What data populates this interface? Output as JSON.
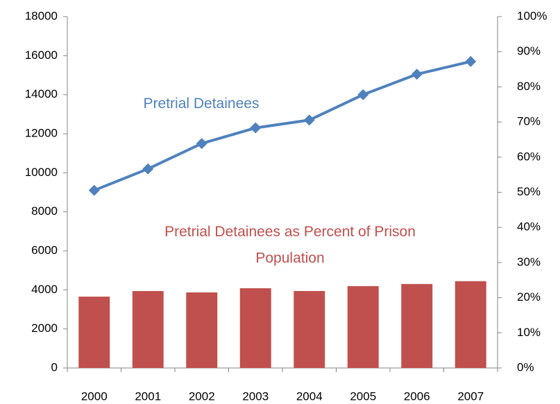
{
  "chart_data": {
    "type": "combo",
    "categories": [
      "2000",
      "2001",
      "2002",
      "2003",
      "2004",
      "2005",
      "2006",
      "2007"
    ],
    "series": [
      {
        "name": "Pretrial Detainees",
        "type": "line",
        "color": "#4f81bd",
        "values": [
          9100,
          10200,
          11500,
          12300,
          12700,
          14000,
          15050,
          15700
        ]
      },
      {
        "name": "Pretrial Detainees as Percent of Prison Population",
        "type": "bar",
        "axis": "y2",
        "color": "#c0504d",
        "values": [
          20.3,
          21.9,
          21.5,
          22.7,
          21.9,
          23.3,
          23.9,
          24.7
        ]
      }
    ],
    "ylim": [
      0,
      18000
    ],
    "yticks": [
      0,
      2000,
      4000,
      6000,
      8000,
      10000,
      12000,
      14000,
      16000,
      18000
    ],
    "y2lim": [
      0,
      100
    ],
    "y2ticks": [
      {
        "value": 0,
        "label": "0%"
      },
      {
        "value": 10,
        "label": "10%"
      },
      {
        "value": 20,
        "label": "20%"
      },
      {
        "value": 30,
        "label": "30%"
      },
      {
        "value": 40,
        "label": "40%"
      },
      {
        "value": 50,
        "label": "50%"
      },
      {
        "value": 60,
        "label": "60%"
      },
      {
        "value": 70,
        "label": "70%"
      },
      {
        "value": 80,
        "label": "80%"
      },
      {
        "value": 90,
        "label": "90%"
      },
      {
        "value": 100,
        "label": "100%"
      }
    ],
    "grid": false
  }
}
